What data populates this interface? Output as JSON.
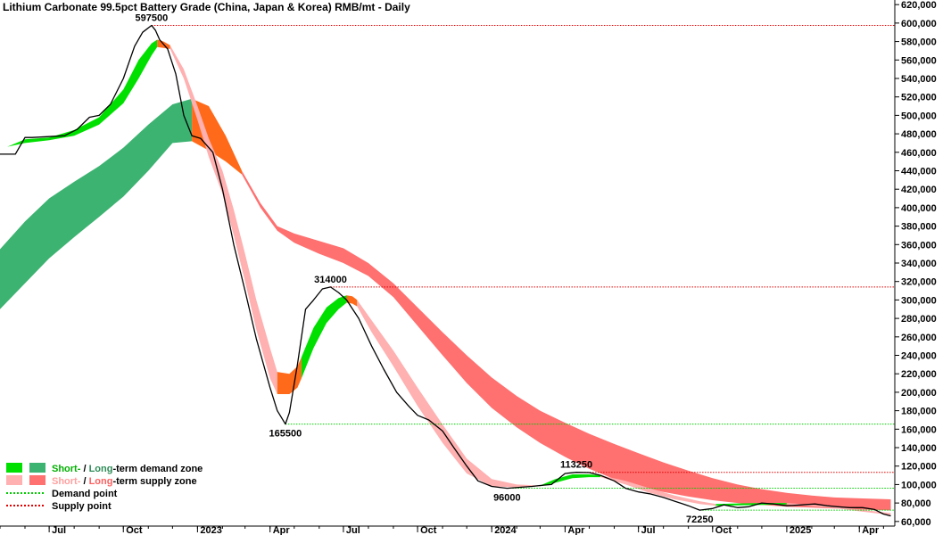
{
  "chart_data": {
    "type": "line",
    "title": "Lithium Carbonate 99.5pct Battery Grade (China, Japan & Korea) RMB/mt - Daily",
    "x_tick_labels": [
      "Jul",
      "Oct",
      "2023",
      "Apr",
      "Jul",
      "Oct",
      "2024",
      "Apr",
      "Jul",
      "Oct",
      "2025",
      "Apr"
    ],
    "x_ticks": [
      "2022-07-01",
      "2022-10-01",
      "2023-01-01",
      "2023-04-01",
      "2023-07-01",
      "2023-10-01",
      "2024-01-01",
      "2024-04-01",
      "2024-07-01",
      "2024-10-01",
      "2025-01-01",
      "2025-04-01"
    ],
    "xlim": [
      "2022-05-01",
      "2025-05-15"
    ],
    "ylim": [
      55000,
      625000
    ],
    "y_ticks": [
      60000,
      80000,
      100000,
      120000,
      140000,
      160000,
      180000,
      200000,
      220000,
      240000,
      260000,
      280000,
      300000,
      320000,
      340000,
      360000,
      380000,
      400000,
      420000,
      440000,
      460000,
      480000,
      500000,
      520000,
      540000,
      560000,
      580000,
      600000,
      620000
    ],
    "y_tick_labels": [
      "60,000",
      "80,000",
      "100,000",
      "120,000",
      "140,000",
      "160,000",
      "180,000",
      "200,000",
      "220,000",
      "240,000",
      "260,000",
      "280,000",
      "300,000",
      "320,000",
      "340,000",
      "360,000",
      "380,000",
      "400,000",
      "420,000",
      "440,000",
      "460,000",
      "480,000",
      "500,000",
      "520,000",
      "540,000",
      "560,000",
      "580,000",
      "600,000",
      "620,000"
    ],
    "y_axis_side": "right",
    "grid": false,
    "colors": {
      "price": "#000000",
      "short_demand": "#00e000",
      "long_demand": "#3cb371",
      "short_supply": "#ffb0b0",
      "long_supply": "#ff7070",
      "transition": "#ff6a1a",
      "demand_point": "#00cc00",
      "supply_point": "#e00000"
    },
    "series": [
      {
        "name": "price",
        "x": [
          "2022-05-01",
          "2022-05-20",
          "2022-06-01",
          "2022-06-10",
          "2022-07-01",
          "2022-07-20",
          "2022-08-05",
          "2022-08-20",
          "2022-09-01",
          "2022-09-15",
          "2022-10-01",
          "2022-10-15",
          "2022-10-25",
          "2022-11-05",
          "2022-11-10",
          "2022-11-15",
          "2022-11-25",
          "2022-12-05",
          "2022-12-15",
          "2022-12-25",
          "2023-01-05",
          "2023-01-20",
          "2023-02-01",
          "2023-02-15",
          "2023-03-01",
          "2023-03-15",
          "2023-04-01",
          "2023-04-10",
          "2023-04-20",
          "2023-04-25",
          "2023-05-05",
          "2023-05-15",
          "2023-05-25",
          "2023-06-05",
          "2023-06-15",
          "2023-06-25",
          "2023-07-05",
          "2023-07-20",
          "2023-08-05",
          "2023-08-20",
          "2023-09-05",
          "2023-09-20",
          "2023-10-01",
          "2023-10-15",
          "2023-11-01",
          "2023-11-15",
          "2023-12-01",
          "2023-12-15",
          "2024-01-01",
          "2024-01-20",
          "2024-02-05",
          "2024-02-20",
          "2024-03-01",
          "2024-03-15",
          "2024-04-01",
          "2024-04-15",
          "2024-05-01",
          "2024-05-15",
          "2024-06-01",
          "2024-06-15",
          "2024-07-01",
          "2024-07-15",
          "2024-08-01",
          "2024-08-15",
          "2024-09-01",
          "2024-09-15",
          "2024-10-01",
          "2024-10-15",
          "2024-11-01",
          "2024-11-15",
          "2024-12-01",
          "2024-12-15",
          "2025-01-01",
          "2025-01-20",
          "2025-02-05",
          "2025-02-20",
          "2025-03-05",
          "2025-03-20",
          "2025-04-05",
          "2025-04-20",
          "2025-05-01",
          "2025-05-10"
        ],
        "y": [
          458000,
          458000,
          476000,
          476000,
          477000,
          478000,
          485000,
          498000,
          500000,
          512000,
          540000,
          575000,
          590000,
          597500,
          592000,
          582000,
          572000,
          545000,
          500000,
          478000,
          475000,
          460000,
          420000,
          360000,
          310000,
          258000,
          205000,
          180000,
          165500,
          178000,
          230000,
          290000,
          300000,
          312000,
          314000,
          308000,
          300000,
          280000,
          250000,
          225000,
          200000,
          185000,
          175000,
          170000,
          158000,
          140000,
          120000,
          104000,
          98000,
          96000,
          97000,
          98000,
          99000,
          100000,
          112000,
          113250,
          113000,
          110000,
          104000,
          96000,
          92000,
          90000,
          86000,
          82000,
          77000,
          72250,
          74000,
          78000,
          75000,
          76000,
          80000,
          79000,
          77000,
          78000,
          79000,
          77000,
          76000,
          75000,
          75000,
          73000,
          68000,
          66000
        ]
      }
    ],
    "bands": {
      "long_demand": {
        "x": [
          "2022-05-01",
          "2022-06-01",
          "2022-07-01",
          "2022-08-01",
          "2022-09-01",
          "2022-10-01",
          "2022-11-01",
          "2022-12-01",
          "2022-12-25"
        ],
        "upper": [
          355000,
          385000,
          410000,
          428000,
          445000,
          465000,
          490000,
          512000,
          518000
        ],
        "lower": [
          290000,
          318000,
          345000,
          368000,
          390000,
          412000,
          440000,
          470000,
          472000
        ]
      },
      "long_transition": {
        "x": [
          "2022-12-25",
          "2023-01-15",
          "2023-02-05",
          "2023-02-25"
        ],
        "upper": [
          518000,
          510000,
          478000,
          440000
        ],
        "lower": [
          472000,
          462000,
          450000,
          436000
        ]
      },
      "long_supply": {
        "x": [
          "2023-02-25",
          "2023-03-20",
          "2023-04-10",
          "2023-05-01",
          "2023-06-01",
          "2023-07-01",
          "2023-08-01",
          "2023-09-01",
          "2023-10-01",
          "2023-11-01",
          "2023-12-01",
          "2024-01-01",
          "2024-02-01",
          "2024-03-01",
          "2024-04-01",
          "2024-05-01",
          "2024-06-01",
          "2024-07-01",
          "2024-08-01",
          "2024-09-01",
          "2024-10-01",
          "2024-11-01",
          "2024-12-01",
          "2025-01-01",
          "2025-02-01",
          "2025-03-01",
          "2025-04-01",
          "2025-05-10"
        ],
        "upper": [
          440000,
          405000,
          380000,
          372000,
          364000,
          356000,
          340000,
          318000,
          292000,
          265000,
          240000,
          216000,
          196000,
          180000,
          167000,
          155000,
          144000,
          134000,
          124000,
          115000,
          107000,
          100000,
          95000,
          91000,
          88000,
          86000,
          85000,
          84000
        ],
        "lower": [
          436000,
          400000,
          375000,
          362000,
          350000,
          340000,
          326000,
          303000,
          272000,
          240000,
          210000,
          183000,
          162000,
          145000,
          130000,
          117000,
          106000,
          98000,
          92000,
          87000,
          83000,
          80000,
          78000,
          76000,
          75000,
          74000,
          73000,
          72000
        ]
      },
      "short_demand_1": {
        "x": [
          "2022-05-10",
          "2022-06-01",
          "2022-07-01",
          "2022-08-01",
          "2022-09-01",
          "2022-10-01",
          "2022-10-20",
          "2022-11-05",
          "2022-11-12"
        ],
        "upper": [
          466000,
          474000,
          476000,
          484000,
          498000,
          528000,
          560000,
          578000,
          582000
        ],
        "lower": [
          466000,
          470000,
          473000,
          478000,
          490000,
          513000,
          540000,
          565000,
          574000
        ]
      },
      "short_transition_1": {
        "x": [
          "2022-11-12",
          "2022-11-20",
          "2022-11-28"
        ],
        "upper": [
          582000,
          580000,
          576000
        ],
        "lower": [
          574000,
          573000,
          572000
        ]
      },
      "short_supply_1": {
        "x": [
          "2022-11-28",
          "2022-12-15",
          "2023-01-01",
          "2023-01-15",
          "2023-02-01",
          "2023-02-15",
          "2023-03-01",
          "2023-03-15",
          "2023-04-01",
          "2023-04-10"
        ],
        "upper": [
          576000,
          550000,
          510000,
          475000,
          440000,
          398000,
          350000,
          300000,
          248000,
          222000
        ],
        "lower": [
          572000,
          540000,
          495000,
          455000,
          415000,
          370000,
          320000,
          268000,
          215000,
          198000
        ]
      },
      "short_transition_2": {
        "x": [
          "2023-04-10",
          "2023-04-25",
          "2023-05-05",
          "2023-05-10"
        ],
        "upper": [
          222000,
          220000,
          228000,
          238000
        ],
        "lower": [
          198000,
          198000,
          205000,
          215000
        ]
      },
      "short_demand_2": {
        "x": [
          "2023-05-10",
          "2023-05-25",
          "2023-06-10",
          "2023-06-25",
          "2023-07-05"
        ],
        "upper": [
          238000,
          270000,
          292000,
          302000,
          305000
        ],
        "lower": [
          215000,
          248000,
          275000,
          290000,
          297000
        ]
      },
      "short_transition_3": {
        "x": [
          "2023-07-05",
          "2023-07-12",
          "2023-07-18"
        ],
        "upper": [
          305000,
          304000,
          300000
        ],
        "lower": [
          297000,
          296000,
          293000
        ]
      },
      "short_supply_2": {
        "x": [
          "2023-07-18",
          "2023-08-05",
          "2023-09-01",
          "2023-10-01",
          "2023-11-01",
          "2023-12-01",
          "2024-01-01",
          "2024-02-01",
          "2024-03-01"
        ],
        "upper": [
          300000,
          278000,
          245000,
          205000,
          165000,
          128000,
          106000,
          100000,
          99000
        ],
        "lower": [
          293000,
          265000,
          228000,
          185000,
          145000,
          112000,
          98000,
          97000,
          98000
        ]
      },
      "short_demand_3": {
        "x": [
          "2024-03-01",
          "2024-03-20",
          "2024-04-10",
          "2024-05-01",
          "2024-05-15"
        ],
        "upper": [
          99000,
          106000,
          111000,
          111000,
          110000
        ],
        "lower": [
          98000,
          102000,
          107000,
          108000,
          108000
        ]
      },
      "short_supply_3": {
        "x": [
          "2024-05-15",
          "2024-06-15",
          "2024-07-15",
          "2024-08-15",
          "2024-09-15",
          "2024-10-05"
        ],
        "upper": [
          110000,
          104000,
          96000,
          88000,
          82000,
          79000
        ],
        "lower": [
          108000,
          100000,
          91000,
          84000,
          79000,
          77000
        ]
      },
      "short_demand_4": {
        "x": [
          "2024-10-05",
          "2024-11-01",
          "2024-12-01",
          "2025-01-01"
        ],
        "upper": [
          79000,
          79500,
          80000,
          80000
        ],
        "lower": [
          77000,
          77500,
          78000,
          78500
        ]
      },
      "short_supply_4": {
        "x": [
          "2025-01-01",
          "2025-02-01",
          "2025-03-01",
          "2025-04-01",
          "2025-05-10"
        ],
        "upper": [
          80000,
          78000,
          76000,
          73000,
          69000
        ],
        "lower": [
          78500,
          76500,
          74500,
          71000,
          67000
        ]
      }
    },
    "reference_lines": [
      {
        "type": "supply",
        "y": 597500,
        "x_start": "2022-11-05"
      },
      {
        "type": "supply",
        "y": 314000,
        "x_start": "2023-06-15"
      },
      {
        "type": "supply",
        "y": 113250,
        "x_start": "2024-04-15"
      },
      {
        "type": "demand",
        "y": 165500,
        "x_start": "2023-04-20"
      },
      {
        "type": "demand",
        "y": 96000,
        "x_start": "2024-01-20"
      },
      {
        "type": "demand",
        "y": 72250,
        "x_start": "2024-09-15"
      }
    ],
    "annotations": [
      {
        "text": "597500",
        "x": "2022-11-05",
        "y": 597500,
        "pos": "above"
      },
      {
        "text": "314000",
        "x": "2023-06-15",
        "y": 314000,
        "pos": "above"
      },
      {
        "text": "165500",
        "x": "2023-04-20",
        "y": 165500,
        "pos": "below"
      },
      {
        "text": "96000",
        "x": "2024-01-20",
        "y": 96000,
        "pos": "below"
      },
      {
        "text": "113250",
        "x": "2024-04-15",
        "y": 113250,
        "pos": "above"
      },
      {
        "text": "72250",
        "x": "2024-09-15",
        "y": 72250,
        "pos": "below"
      }
    ],
    "legend": {
      "placement": "bottom-left",
      "items": [
        {
          "kind": "demand_zone",
          "parts": [
            {
              "text": "Short-",
              "color": "#00b000"
            },
            {
              "text": " / ",
              "color": "#000000"
            },
            {
              "text": "Long",
              "color": "#2e8b57"
            },
            {
              "text": "-term demand zone",
              "color": "#000000"
            }
          ]
        },
        {
          "kind": "supply_zone",
          "parts": [
            {
              "text": "Short-",
              "color": "#ffa0a0"
            },
            {
              "text": " / ",
              "color": "#000000"
            },
            {
              "text": "Long",
              "color": "#ff6060"
            },
            {
              "text": "-term supply zone",
              "color": "#000000"
            }
          ]
        },
        {
          "kind": "demand_point",
          "parts": [
            {
              "text": "Demand point",
              "color": "#000000"
            }
          ]
        },
        {
          "kind": "supply_point",
          "parts": [
            {
              "text": "Supply point",
              "color": "#000000"
            }
          ]
        }
      ]
    }
  }
}
